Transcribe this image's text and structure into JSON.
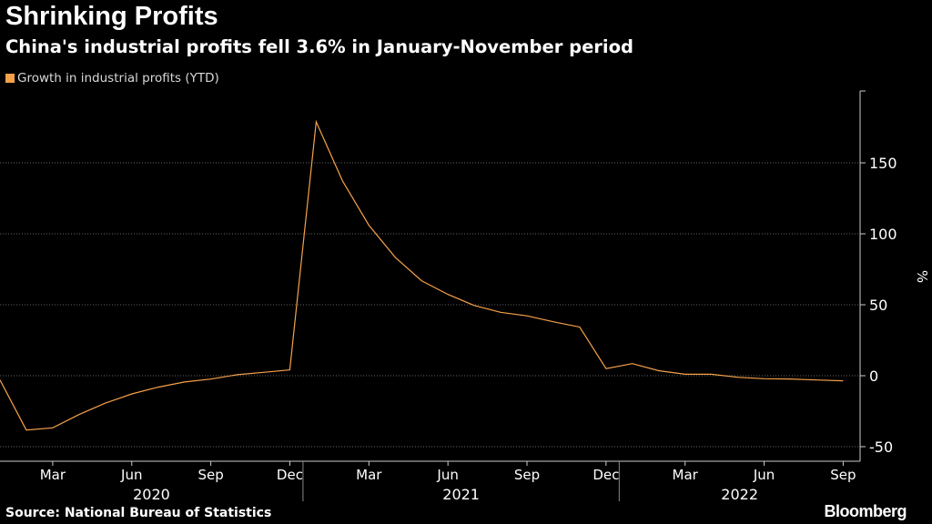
{
  "header": {
    "title": "Shrinking Profits",
    "subtitle": "China's industrial profits fell 3.6% in January-November period"
  },
  "footer": {
    "source": "Source: National Bureau of Statistics",
    "brand": "Bloomberg"
  },
  "colors": {
    "background": "#000000",
    "series": "#f6a14a",
    "grid": "#666666",
    "text": "#ffffff"
  },
  "chart_data": {
    "type": "line",
    "ylabel": "%",
    "ylim": [
      -60,
      200
    ],
    "yticks": [
      -50,
      0,
      50,
      100,
      150
    ],
    "grid": "horizontal dotted",
    "legend_position": "top-left",
    "x_month_ticks": [
      {
        "label": "Mar",
        "index": 2
      },
      {
        "label": "Jun",
        "index": 5
      },
      {
        "label": "Sep",
        "index": 8
      },
      {
        "label": "Dec",
        "index": 11
      },
      {
        "label": "Mar",
        "index": 14
      },
      {
        "label": "Jun",
        "index": 17
      },
      {
        "label": "Sep",
        "index": 20
      },
      {
        "label": "Dec",
        "index": 23
      },
      {
        "label": "Mar",
        "index": 26
      },
      {
        "label": "Jun",
        "index": 29
      },
      {
        "label": "Sep",
        "index": 32
      }
    ],
    "x_years": [
      {
        "label": "2020",
        "start": 0,
        "end": 11.5
      },
      {
        "label": "2021",
        "start": 11.5,
        "end": 23.5
      },
      {
        "label": "2022",
        "start": 23.5,
        "end": 34.5
      }
    ],
    "series": [
      {
        "name": "Growth in industrial profits (YTD)",
        "points": [
          {
            "period": "2019-12",
            "value": -3
          },
          {
            "period": "2020-02",
            "value": -38.3
          },
          {
            "period": "2020-03",
            "value": -36.7
          },
          {
            "period": "2020-04",
            "value": -27.4
          },
          {
            "period": "2020-05",
            "value": -19.3
          },
          {
            "period": "2020-06",
            "value": -12.8
          },
          {
            "period": "2020-07",
            "value": -8.1
          },
          {
            "period": "2020-08",
            "value": -4.4
          },
          {
            "period": "2020-09",
            "value": -2.4
          },
          {
            "period": "2020-10",
            "value": 0.7
          },
          {
            "period": "2020-11",
            "value": 2.4
          },
          {
            "period": "2020-12",
            "value": 4.1
          },
          {
            "period": "2021-02",
            "value": 178.9
          },
          {
            "period": "2021-03",
            "value": 137.3
          },
          {
            "period": "2021-04",
            "value": 106
          },
          {
            "period": "2021-05",
            "value": 83.4
          },
          {
            "period": "2021-06",
            "value": 66.9
          },
          {
            "period": "2021-07",
            "value": 57.3
          },
          {
            "period": "2021-08",
            "value": 49.5
          },
          {
            "period": "2021-09",
            "value": 44.7
          },
          {
            "period": "2021-10",
            "value": 42.2
          },
          {
            "period": "2021-11",
            "value": 38
          },
          {
            "period": "2021-12",
            "value": 34.3
          },
          {
            "period": "2022-02",
            "value": 5
          },
          {
            "period": "2022-03",
            "value": 8.5
          },
          {
            "period": "2022-04",
            "value": 3.5
          },
          {
            "period": "2022-05",
            "value": 1
          },
          {
            "period": "2022-06",
            "value": 1
          },
          {
            "period": "2022-07",
            "value": -1.1
          },
          {
            "period": "2022-08",
            "value": -2.1
          },
          {
            "period": "2022-09",
            "value": -2.3
          },
          {
            "period": "2022-10",
            "value": -3
          },
          {
            "period": "2022-11",
            "value": -3.6
          }
        ]
      }
    ]
  }
}
